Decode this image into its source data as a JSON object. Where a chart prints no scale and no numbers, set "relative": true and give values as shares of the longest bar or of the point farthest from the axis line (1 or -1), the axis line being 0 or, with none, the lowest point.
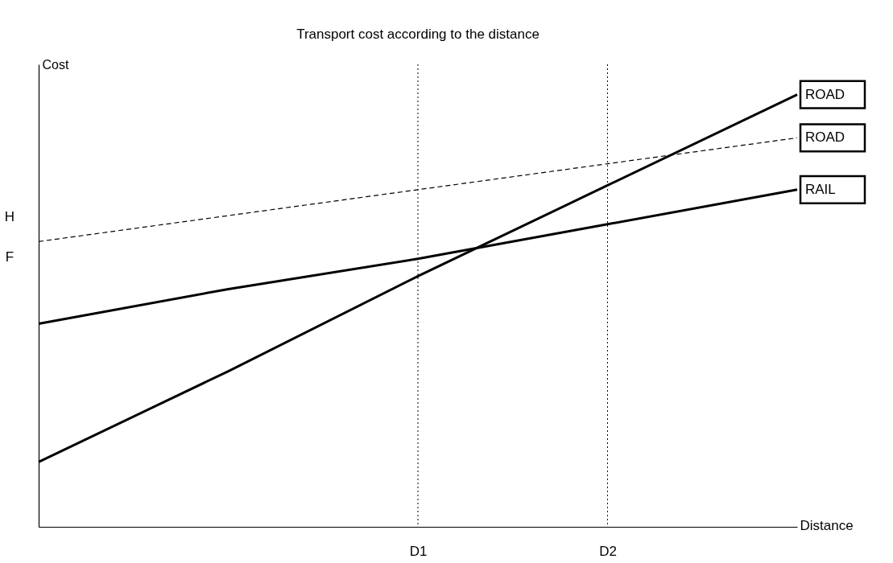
{
  "chart_data": {
    "type": "line",
    "title": "Transport cost according to the distance",
    "xlabel": "Distance",
    "ylabel": "Cost",
    "relative": true,
    "categories": [
      null,
      null,
      "D1",
      "D2",
      null
    ],
    "series": [
      {
        "name": "ROAD",
        "color": "#000000",
        "values": [
          0.66,
          0.72,
          0.78,
          0.84,
          0.9
        ],
        "line_style": "dashed"
      },
      {
        "name": "ROAD",
        "color": "#000000",
        "values": [
          0.15,
          0.36,
          0.58,
          0.79,
          1
        ]
      },
      {
        "name": "RAIL",
        "color": "#000000",
        "values": [
          0.47,
          0.55,
          0.62,
          0.7,
          0.78
        ]
      }
    ],
    "ref_lines": [
      {
        "axis": "x",
        "value": "D1",
        "line_style": "dotted"
      },
      {
        "axis": "x",
        "value": "D2",
        "line_style": "dotted"
      }
    ],
    "annotations": [
      "H",
      "F"
    ],
    "legend": false,
    "marker": "none",
    "grid": false
  }
}
